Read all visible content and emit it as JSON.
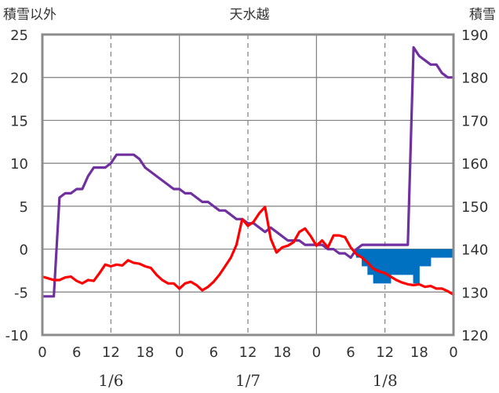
{
  "chart_data": {
    "type": "line",
    "title": "天水越",
    "left_axis_label": "積雪以外",
    "right_axis_label": "積雪",
    "left_ylim": [
      -10,
      25
    ],
    "left_ticks": [
      "25",
      "20",
      "15",
      "10",
      "5",
      "0",
      "-5",
      "-10"
    ],
    "right_ylim": [
      120,
      190
    ],
    "right_ticks": [
      "190",
      "180",
      "170",
      "160",
      "150",
      "140",
      "130",
      "120"
    ],
    "xlim": [
      0,
      72
    ],
    "x_ticks": [
      {
        "h": 0,
        "label": "0"
      },
      {
        "h": 6,
        "label": "6"
      },
      {
        "h": 12,
        "label": "12"
      },
      {
        "h": 18,
        "label": "18"
      },
      {
        "h": 24,
        "label": "0"
      },
      {
        "h": 30,
        "label": "6"
      },
      {
        "h": 36,
        "label": "12"
      },
      {
        "h": 42,
        "label": "18"
      },
      {
        "h": 48,
        "label": "0"
      },
      {
        "h": 54,
        "label": "6"
      },
      {
        "h": 60,
        "label": "12"
      },
      {
        "h": 66,
        "label": "18"
      },
      {
        "h": 72,
        "label": "0"
      }
    ],
    "day_labels": [
      {
        "h": 12,
        "label": "1/6"
      },
      {
        "h": 36,
        "label": "1/7"
      },
      {
        "h": 60,
        "label": "1/8"
      }
    ],
    "grid": {
      "solid_every_h": 24,
      "dashed_every_h": 12,
      "horizontal_step": 5
    },
    "series": [
      {
        "color": "#ff0000",
        "axis": "left",
        "kind": "line",
        "x": [
          0,
          1,
          2,
          3,
          4,
          5,
          6,
          7,
          8,
          9,
          10,
          11,
          12,
          13,
          14,
          15,
          16,
          17,
          18,
          19,
          20,
          21,
          22,
          23,
          24,
          25,
          26,
          27,
          28,
          29,
          30,
          31,
          32,
          33,
          34,
          35,
          36,
          37,
          38,
          39,
          40,
          41,
          42,
          43,
          44,
          45,
          46,
          47,
          48,
          49,
          50,
          51,
          52,
          53,
          54,
          55,
          56,
          57,
          58,
          59,
          60,
          61,
          62,
          63,
          64,
          65,
          66,
          67,
          68,
          69,
          70,
          71,
          72
        ],
        "values": [
          -3.2,
          -3.4,
          -3.6,
          -3.6,
          -3.3,
          -3.2,
          -3.7,
          -4.0,
          -3.6,
          -3.7,
          -2.8,
          -1.8,
          -2.0,
          -1.8,
          -1.9,
          -1.3,
          -1.6,
          -1.7,
          -2.0,
          -2.2,
          -3.0,
          -3.6,
          -4.0,
          -4.0,
          -4.6,
          -4.0,
          -3.8,
          -4.2,
          -4.8,
          -4.4,
          -3.8,
          -3.0,
          -2.0,
          -1.0,
          0.5,
          3.5,
          2.7,
          3.2,
          4.2,
          4.9,
          1.2,
          -0.4,
          0.2,
          0.4,
          0.8,
          2.0,
          2.4,
          1.5,
          0.4,
          1.0,
          0.2,
          1.6,
          1.6,
          1.4,
          0.2,
          -0.6,
          -1.0,
          -1.6,
          -2.3,
          -2.6,
          -2.8,
          -3.2,
          -3.6,
          -3.9,
          -4.1,
          -4.2,
          -4.1,
          -4.4,
          -4.3,
          -4.6,
          -4.6,
          -4.9,
          -5.3
        ]
      },
      {
        "color": "#7030a0",
        "axis": "right",
        "kind": "line",
        "x": [
          0,
          1,
          2,
          3,
          4,
          5,
          6,
          7,
          8,
          9,
          10,
          11,
          12,
          13,
          14,
          15,
          16,
          17,
          18,
          19,
          20,
          21,
          22,
          23,
          24,
          25,
          26,
          27,
          28,
          29,
          30,
          31,
          32,
          33,
          34,
          35,
          36,
          37,
          38,
          39,
          40,
          41,
          42,
          43,
          44,
          45,
          46,
          47,
          48,
          49,
          50,
          51,
          52,
          53,
          54,
          55,
          56,
          57,
          58,
          59,
          60,
          61,
          62,
          63,
          64,
          65,
          66,
          67,
          68,
          69,
          70,
          71,
          72
        ],
        "values": [
          129,
          129,
          129,
          152,
          153,
          153,
          154,
          154,
          157,
          159,
          159,
          159,
          160,
          162,
          162,
          162,
          162,
          161,
          159,
          158,
          157,
          156,
          155,
          154,
          154,
          153,
          153,
          152,
          151,
          151,
          150,
          149,
          149,
          148,
          147,
          147,
          146,
          146,
          145,
          144,
          145,
          144,
          143,
          142,
          142,
          142,
          141,
          141,
          141,
          141,
          140,
          140,
          139,
          139,
          138,
          140,
          141,
          141,
          141,
          141,
          141,
          141,
          141,
          141,
          141,
          187,
          185,
          184,
          183,
          183,
          181,
          180,
          180
        ]
      },
      {
        "color": "#0070c0",
        "axis": "left",
        "kind": "step_bar",
        "x": [
          55,
          56,
          57,
          58,
          59,
          60,
          61,
          62,
          63,
          64,
          65,
          66,
          67,
          68,
          69,
          70,
          71
        ],
        "values": [
          -1,
          -2,
          -3,
          -4,
          -4,
          -4,
          -3,
          -3,
          -3,
          -3,
          -4,
          -2,
          -2,
          -1,
          -1,
          -1,
          -1
        ]
      }
    ]
  }
}
